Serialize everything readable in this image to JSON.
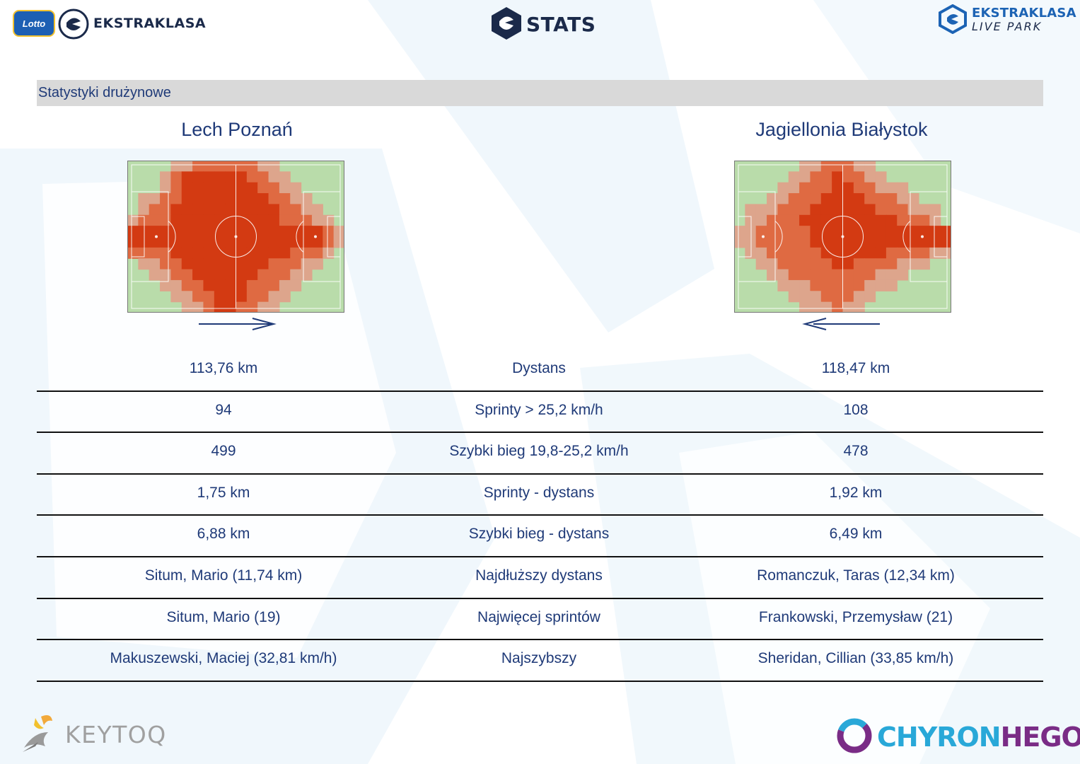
{
  "header": {
    "lotto_logo": "Lotto",
    "ekstraklasa_logo": "EKSTRAKLASA",
    "stats_logo": "STATS",
    "livepark_line1": "EKSTRAKLASA",
    "livepark_line2": "LIVE PARK"
  },
  "section_title": "Statystyki drużynowe",
  "teams": {
    "home": {
      "name": "Lech Poznań",
      "attack_direction": "right"
    },
    "away": {
      "name": "Jagiellonia Białystok",
      "attack_direction": "left"
    }
  },
  "stats": [
    {
      "home": "113,76 km",
      "label": "Dystans",
      "away": "118,47 km"
    },
    {
      "home": "94",
      "label": "Sprinty > 25,2 km/h",
      "away": "108"
    },
    {
      "home": "499",
      "label": "Szybki bieg 19,8-25,2 km/h",
      "away": "478"
    },
    {
      "home": "1,75 km",
      "label": "Sprinty - dystans",
      "away": "1,92 km"
    },
    {
      "home": "6,88 km",
      "label": "Szybki bieg - dystans",
      "away": "6,49 km"
    },
    {
      "home": "Situm, Mario (11,74 km)",
      "label": "Najdłuższy dystans",
      "away": "Romanczuk, Taras (12,34 km)"
    },
    {
      "home": "Situm, Mario (19)",
      "label": "Najwięcej sprintów",
      "away": "Frankowski, Przemysław (21)"
    },
    {
      "home": "Makuszewski, Maciej (32,81 km/h)",
      "label": "Najszybszy",
      "away": "Sheridan, Cillian (33,85 km/h)"
    }
  ],
  "footer": {
    "keytoq_logo": "KEYTOQ",
    "chyron_part1": "CHYRON",
    "chyron_part2": "HEGO"
  },
  "colors": {
    "heat_high": "#d33a12",
    "heat_mid": "#df6a42",
    "heat_low": "#dda58c",
    "heat_faint": "#cfc0a6",
    "pitch_green": "#b9dcaa",
    "text_blue": "#1f3a78",
    "section_bar": "#d9d9d9"
  },
  "heatmaps": {
    "home": [
      [
        0,
        0,
        0,
        0,
        1,
        1,
        2,
        2,
        2,
        2,
        2,
        2,
        1,
        1,
        0,
        0,
        0,
        0,
        0,
        0
      ],
      [
        0,
        0,
        0,
        1,
        2,
        3,
        3,
        3,
        3,
        3,
        3,
        2,
        2,
        1,
        1,
        0,
        0,
        0,
        0,
        0
      ],
      [
        0,
        0,
        0,
        1,
        2,
        3,
        3,
        3,
        3,
        3,
        3,
        3,
        2,
        2,
        1,
        1,
        0,
        0,
        0,
        0
      ],
      [
        0,
        1,
        1,
        2,
        2,
        3,
        3,
        3,
        3,
        3,
        3,
        3,
        3,
        2,
        2,
        1,
        1,
        0,
        0,
        0
      ],
      [
        0,
        1,
        2,
        2,
        3,
        3,
        3,
        3,
        3,
        3,
        3,
        3,
        3,
        3,
        2,
        2,
        1,
        1,
        0,
        0
      ],
      [
        1,
        2,
        2,
        2,
        3,
        3,
        3,
        3,
        3,
        3,
        3,
        3,
        3,
        3,
        2,
        2,
        2,
        1,
        1,
        0
      ],
      [
        3,
        3,
        3,
        3,
        3,
        3,
        3,
        3,
        3,
        3,
        3,
        3,
        3,
        3,
        3,
        3,
        3,
        3,
        2,
        1
      ],
      [
        3,
        3,
        3,
        3,
        3,
        3,
        3,
        3,
        3,
        3,
        3,
        3,
        3,
        3,
        3,
        3,
        3,
        3,
        2,
        1
      ],
      [
        2,
        2,
        2,
        2,
        3,
        3,
        3,
        3,
        3,
        3,
        3,
        3,
        3,
        3,
        3,
        2,
        2,
        2,
        1,
        0
      ],
      [
        0,
        1,
        1,
        2,
        2,
        3,
        3,
        3,
        3,
        3,
        3,
        3,
        3,
        2,
        2,
        2,
        1,
        1,
        0,
        0
      ],
      [
        0,
        0,
        1,
        1,
        2,
        2,
        3,
        3,
        3,
        3,
        3,
        3,
        2,
        2,
        2,
        1,
        1,
        0,
        0,
        0
      ],
      [
        0,
        0,
        0,
        1,
        1,
        2,
        2,
        3,
        3,
        3,
        3,
        2,
        2,
        2,
        1,
        1,
        0,
        0,
        0,
        0
      ],
      [
        0,
        0,
        0,
        0,
        1,
        1,
        2,
        2,
        3,
        3,
        3,
        2,
        2,
        1,
        1,
        0,
        0,
        0,
        0,
        0
      ],
      [
        0,
        0,
        0,
        0,
        0,
        1,
        1,
        2,
        3,
        3,
        2,
        2,
        1,
        1,
        0,
        0,
        0,
        0,
        0,
        0
      ]
    ],
    "away": [
      [
        0,
        0,
        0,
        0,
        0,
        0,
        1,
        1,
        2,
        2,
        2,
        1,
        1,
        0,
        0,
        0,
        0,
        0,
        0,
        0
      ],
      [
        0,
        0,
        0,
        0,
        0,
        1,
        1,
        2,
        2,
        3,
        2,
        2,
        1,
        1,
        0,
        0,
        0,
        0,
        0,
        0
      ],
      [
        0,
        0,
        0,
        0,
        1,
        1,
        2,
        2,
        2,
        3,
        3,
        2,
        2,
        1,
        1,
        1,
        0,
        0,
        0,
        0
      ],
      [
        0,
        0,
        0,
        1,
        1,
        2,
        2,
        2,
        3,
        3,
        3,
        3,
        2,
        2,
        2,
        1,
        1,
        0,
        0,
        0
      ],
      [
        0,
        1,
        1,
        1,
        2,
        2,
        2,
        3,
        3,
        3,
        3,
        3,
        3,
        2,
        2,
        2,
        1,
        1,
        1,
        0
      ],
      [
        0,
        1,
        1,
        2,
        2,
        2,
        3,
        3,
        3,
        3,
        3,
        3,
        3,
        3,
        3,
        2,
        2,
        2,
        1,
        0
      ],
      [
        1,
        1,
        2,
        2,
        2,
        2,
        2,
        3,
        3,
        3,
        3,
        3,
        3,
        3,
        3,
        3,
        3,
        3,
        3,
        3
      ],
      [
        1,
        1,
        2,
        2,
        2,
        2,
        2,
        3,
        3,
        3,
        3,
        3,
        3,
        3,
        3,
        3,
        3,
        3,
        3,
        3
      ],
      [
        0,
        1,
        1,
        2,
        2,
        2,
        2,
        2,
        3,
        3,
        3,
        3,
        3,
        3,
        2,
        2,
        2,
        2,
        1,
        1
      ],
      [
        0,
        0,
        1,
        1,
        2,
        2,
        2,
        2,
        2,
        3,
        3,
        2,
        2,
        2,
        2,
        1,
        1,
        1,
        0,
        0
      ],
      [
        0,
        0,
        0,
        1,
        1,
        2,
        2,
        2,
        2,
        2,
        2,
        2,
        2,
        1,
        1,
        1,
        0,
        0,
        0,
        0
      ],
      [
        0,
        0,
        0,
        0,
        1,
        1,
        1,
        2,
        2,
        2,
        2,
        2,
        1,
        1,
        1,
        0,
        0,
        0,
        0,
        0
      ],
      [
        0,
        0,
        0,
        0,
        0,
        1,
        1,
        1,
        2,
        2,
        2,
        1,
        1,
        0,
        0,
        0,
        0,
        0,
        0,
        0
      ],
      [
        0,
        0,
        0,
        0,
        0,
        0,
        1,
        1,
        1,
        2,
        1,
        1,
        0,
        0,
        0,
        0,
        0,
        0,
        0,
        0
      ]
    ]
  }
}
